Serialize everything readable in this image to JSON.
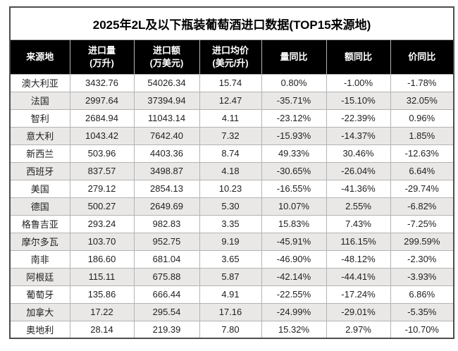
{
  "title": "2025年2L及以下瓶装葡萄酒进口数据(TOP15来源地)",
  "table": {
    "headers": [
      {
        "line1": "来源地",
        "line2": ""
      },
      {
        "line1": "进口量",
        "line2": "(万升)"
      },
      {
        "line1": "进口额",
        "line2": "(万美元)"
      },
      {
        "line1": "进口均价",
        "line2": "(美元/升)"
      },
      {
        "line1": "量同比",
        "line2": ""
      },
      {
        "line1": "额同比",
        "line2": ""
      },
      {
        "line1": "价同比",
        "line2": ""
      }
    ],
    "rows": [
      [
        "澳大利亚",
        "3432.76",
        "54026.34",
        "15.74",
        "0.80%",
        "-1.00%",
        "-1.78%"
      ],
      [
        "法国",
        "2997.64",
        "37394.94",
        "12.47",
        "-35.71%",
        "-15.10%",
        "32.05%"
      ],
      [
        "智利",
        "2684.94",
        "11043.14",
        "4.11",
        "-23.12%",
        "-22.39%",
        "0.96%"
      ],
      [
        "意大利",
        "1043.42",
        "7642.40",
        "7.32",
        "-15.93%",
        "-14.37%",
        "1.85%"
      ],
      [
        "新西兰",
        "503.96",
        "4403.36",
        "8.74",
        "49.33%",
        "30.46%",
        "-12.63%"
      ],
      [
        "西班牙",
        "837.57",
        "3498.87",
        "4.18",
        "-30.65%",
        "-26.04%",
        "6.64%"
      ],
      [
        "美国",
        "279.12",
        "2854.13",
        "10.23",
        "-16.55%",
        "-41.36%",
        "-29.74%"
      ],
      [
        "德国",
        "500.27",
        "2649.69",
        "5.30",
        "10.07%",
        "2.55%",
        "-6.82%"
      ],
      [
        "格鲁吉亚",
        "293.24",
        "982.83",
        "3.35",
        "15.83%",
        "7.43%",
        "-7.25%"
      ],
      [
        "摩尔多瓦",
        "103.70",
        "952.75",
        "9.19",
        "-45.91%",
        "116.15%",
        "299.59%"
      ],
      [
        "南非",
        "186.60",
        "681.04",
        "3.65",
        "-46.90%",
        "-48.12%",
        "-2.30%"
      ],
      [
        "阿根廷",
        "115.11",
        "675.88",
        "5.87",
        "-42.14%",
        "-44.41%",
        "-3.93%"
      ],
      [
        "葡萄牙",
        "135.86",
        "666.44",
        "4.91",
        "-22.55%",
        "-17.24%",
        "6.86%"
      ],
      [
        "加拿大",
        "17.22",
        "295.54",
        "17.16",
        "-24.99%",
        "-29.01%",
        "-5.35%"
      ],
      [
        "奥地利",
        "28.14",
        "219.39",
        "7.80",
        "15.32%",
        "2.97%",
        "-10.70%"
      ]
    ]
  },
  "colors": {
    "header_bg": "#000000",
    "header_text": "#ffffff",
    "alt_row_bg": "#e9e8e6",
    "grid_line": "#b3b3b3",
    "outer_border": "#4d4d4d"
  },
  "chart_data": {
    "type": "table",
    "title": "2025年2L及以下瓶装葡萄酒进口数据(TOP15来源地)",
    "columns": [
      "来源地",
      "进口量(万升)",
      "进口额(万美元)",
      "进口均价(美元/升)",
      "量同比",
      "额同比",
      "价同比"
    ],
    "rows": [
      {
        "来源地": "澳大利亚",
        "进口量_万升": 3432.76,
        "进口额_万美元": 54026.34,
        "进口均价_美元每升": 15.74,
        "量同比": "0.80%",
        "额同比": "-1.00%",
        "价同比": "-1.78%"
      },
      {
        "来源地": "法国",
        "进口量_万升": 2997.64,
        "进口额_万美元": 37394.94,
        "进口均价_美元每升": 12.47,
        "量同比": "-35.71%",
        "额同比": "-15.10%",
        "价同比": "32.05%"
      },
      {
        "来源地": "智利",
        "进口量_万升": 2684.94,
        "进口额_万美元": 11043.14,
        "进口均价_美元每升": 4.11,
        "量同比": "-23.12%",
        "额同比": "-22.39%",
        "价同比": "0.96%"
      },
      {
        "来源地": "意大利",
        "进口量_万升": 1043.42,
        "进口额_万美元": 7642.4,
        "进口均价_美元每升": 7.32,
        "量同比": "-15.93%",
        "额同比": "-14.37%",
        "价同比": "1.85%"
      },
      {
        "来源地": "新西兰",
        "进口量_万升": 503.96,
        "进口额_万美元": 4403.36,
        "进口均价_美元每升": 8.74,
        "量同比": "49.33%",
        "额同比": "30.46%",
        "价同比": "-12.63%"
      },
      {
        "来源地": "西班牙",
        "进口量_万升": 837.57,
        "进口额_万美元": 3498.87,
        "进口均价_美元每升": 4.18,
        "量同比": "-30.65%",
        "额同比": "-26.04%",
        "价同比": "6.64%"
      },
      {
        "来源地": "美国",
        "进口量_万升": 279.12,
        "进口额_万美元": 2854.13,
        "进口均价_美元每升": 10.23,
        "量同比": "-16.55%",
        "额同比": "-41.36%",
        "价同比": "-29.74%"
      },
      {
        "来源地": "德国",
        "进口量_万升": 500.27,
        "进口额_万美元": 2649.69,
        "进口均价_美元每升": 5.3,
        "量同比": "10.07%",
        "额同比": "2.55%",
        "价同比": "-6.82%"
      },
      {
        "来源地": "格鲁吉亚",
        "进口量_万升": 293.24,
        "进口额_万美元": 982.83,
        "进口均价_美元每升": 3.35,
        "量同比": "15.83%",
        "额同比": "7.43%",
        "价同比": "-7.25%"
      },
      {
        "来源地": "摩尔多瓦",
        "进口量_万升": 103.7,
        "进口额_万美元": 952.75,
        "进口均价_美元每升": 9.19,
        "量同比": "-45.91%",
        "额同比": "116.15%",
        "价同比": "299.59%"
      },
      {
        "来源地": "南非",
        "进口量_万升": 186.6,
        "进口额_万美元": 681.04,
        "进口均价_美元每升": 3.65,
        "量同比": "-46.90%",
        "额同比": "-48.12%",
        "价同比": "-2.30%"
      },
      {
        "来源地": "阿根廷",
        "进口量_万升": 115.11,
        "进口额_万美元": 675.88,
        "进口均价_美元每升": 5.87,
        "量同比": "-42.14%",
        "额同比": "-44.41%",
        "价同比": "-3.93%"
      },
      {
        "来源地": "葡萄牙",
        "进口量_万升": 135.86,
        "进口额_万美元": 666.44,
        "进口均价_美元每升": 4.91,
        "量同比": "-22.55%",
        "额同比": "-17.24%",
        "价同比": "6.86%"
      },
      {
        "来源地": "加拿大",
        "进口量_万升": 17.22,
        "进口额_万美元": 295.54,
        "进口均价_美元每升": 17.16,
        "量同比": "-24.99%",
        "额同比": "-29.01%",
        "价同比": "-5.35%"
      },
      {
        "来源地": "奥地利",
        "进口量_万升": 28.14,
        "进口额_万美元": 219.39,
        "进口均价_美元每升": 7.8,
        "量同比": "15.32%",
        "额同比": "2.97%",
        "价同比": "-10.70%"
      }
    ]
  }
}
